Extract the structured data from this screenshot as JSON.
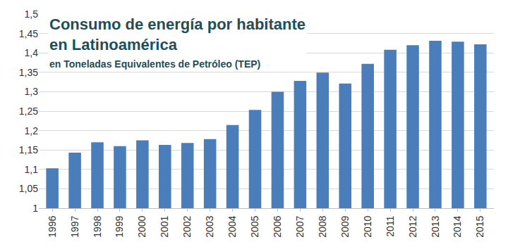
{
  "chart_data": {
    "type": "bar",
    "title": "Consumo de energía por habitante\nen Latinoamérica",
    "subtitle": "en Toneladas Equivalentes de Petróleo (TEP)",
    "categories": [
      "1996",
      "1997",
      "1998",
      "1999",
      "2000",
      "2001",
      "2002",
      "2003",
      "2004",
      "2005",
      "2006",
      "2007",
      "2008",
      "2009",
      "2010",
      "2011",
      "2012",
      "2013",
      "2014",
      "2015"
    ],
    "values": [
      1.103,
      1.143,
      1.17,
      1.16,
      1.175,
      1.163,
      1.168,
      1.178,
      1.214,
      1.253,
      1.3,
      1.328,
      1.349,
      1.321,
      1.372,
      1.408,
      1.42,
      1.431,
      1.429,
      1.422
    ],
    "color": "#4a7ebb",
    "ylim": [
      1,
      1.5
    ],
    "yticks": [
      1,
      {
        "value": 1.05,
        "label": "1,05"
      },
      {
        "value": 1.1,
        "label": "1,1"
      },
      {
        "value": 1.15,
        "label": "1,15"
      },
      {
        "value": 1.2,
        "label": "1,2"
      },
      {
        "value": 1.25,
        "label": "1,25"
      },
      {
        "value": 1.3,
        "label": "1,3"
      },
      {
        "value": 1.35,
        "label": "1,35"
      },
      {
        "value": 1.4,
        "label": "1,4"
      },
      {
        "value": 1.45,
        "label": "1,45"
      },
      {
        "value": 1.5,
        "label": "1,5"
      }
    ],
    "grid": true
  }
}
